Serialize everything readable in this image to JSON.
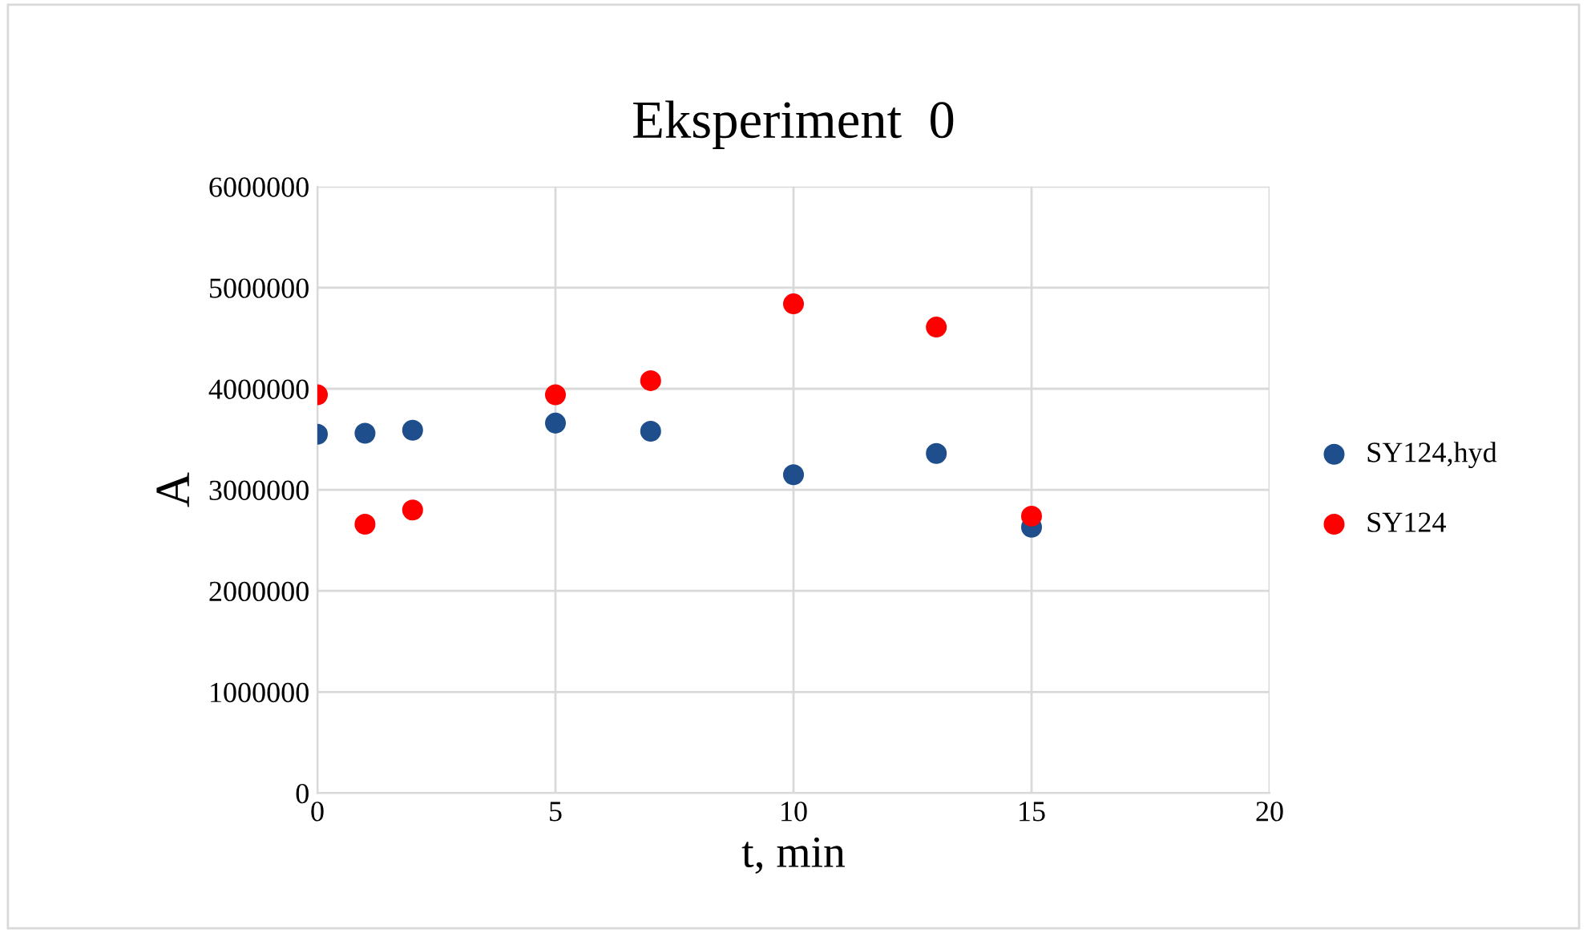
{
  "chart_data": {
    "type": "scatter",
    "title": "Eksperiment  0",
    "xlabel": "t, min",
    "ylabel": "A",
    "x": [
      0,
      1,
      2,
      5,
      7,
      10,
      13,
      15
    ],
    "series": [
      {
        "name": "SY124,hyd",
        "color": "#1f4e8c",
        "values": [
          3550000,
          3560000,
          3590000,
          3660000,
          3580000,
          3150000,
          3360000,
          2630000
        ]
      },
      {
        "name": "SY124",
        "color": "#ff0000",
        "values": [
          3940000,
          2660000,
          2800000,
          3940000,
          4080000,
          4840000,
          4610000,
          2740000
        ]
      }
    ],
    "xlim": [
      0,
      20
    ],
    "xticks": [
      0,
      5,
      10,
      15,
      20
    ],
    "ylim": [
      0,
      6000000
    ],
    "yticks": [
      0,
      1000000,
      2000000,
      3000000,
      4000000,
      5000000,
      6000000
    ],
    "grid": true,
    "legend": "right",
    "marker": "circle"
  }
}
